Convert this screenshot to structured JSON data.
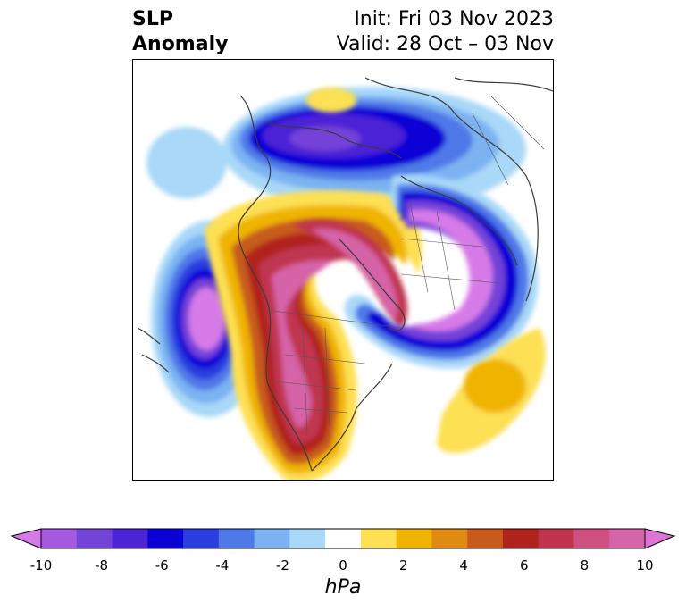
{
  "header": {
    "title_line1": "SLP",
    "title_line2": "Anomaly",
    "init_line": "Init: Fri 03 Nov 2023",
    "valid_line": "Valid: 28 Oct – 03 Nov"
  },
  "colorbar": {
    "unit": "hPa",
    "ticks": [
      "-10",
      "-8",
      "-6",
      "-4",
      "-2",
      "0",
      "2",
      "4",
      "6",
      "8",
      "10"
    ],
    "colors": [
      "#d67ae8",
      "#a559e0",
      "#7443d8",
      "#4b24d6",
      "#0b00d6",
      "#2c3ee0",
      "#4f78e8",
      "#7cb2f2",
      "#a9d8f8",
      "#ffffff",
      "#fde053",
      "#f0b400",
      "#e08a12",
      "#c85b1b",
      "#b0221c",
      "#c0344f",
      "#cf5081",
      "#d664a8",
      "#e073d8"
    ]
  },
  "colors": {
    "land_outline": "#3a3a3a",
    "frame": "#000000"
  }
}
